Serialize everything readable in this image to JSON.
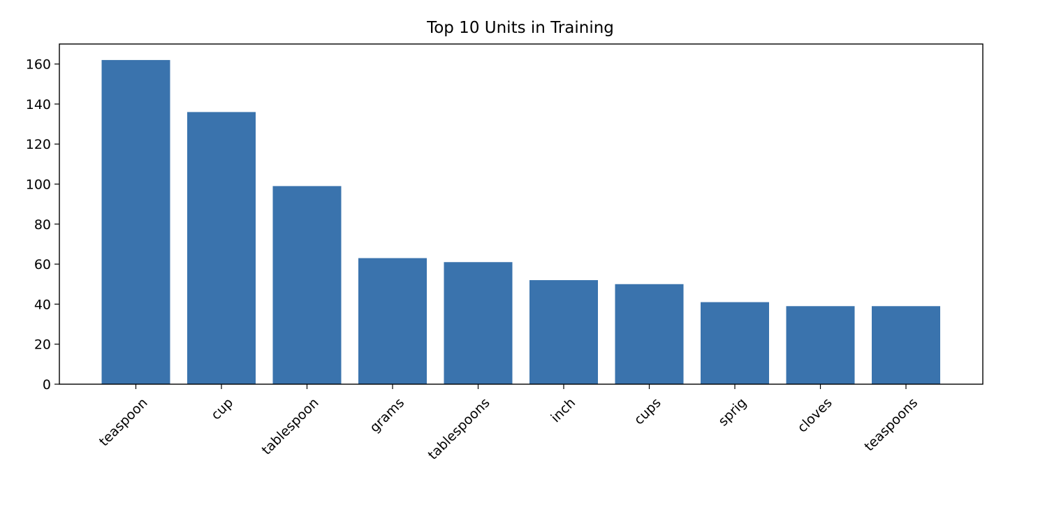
{
  "colors": {
    "bar": "#3a73ad",
    "axis": "#000000",
    "background": "#ffffff"
  },
  "chart_data": {
    "type": "bar",
    "title": "Top 10 Units in Training",
    "xlabel": "",
    "ylabel": "",
    "categories": [
      "teaspoon",
      "cup",
      "tablespoon",
      "grams",
      "tablespoons",
      "inch",
      "cups",
      "sprig",
      "cloves",
      "teaspoons"
    ],
    "values": [
      162,
      136,
      99,
      63,
      61,
      52,
      50,
      41,
      39,
      39
    ],
    "ylim": [
      0,
      170
    ],
    "yticks": [
      "0",
      "20",
      "40",
      "60",
      "80",
      "100",
      "120",
      "140",
      "160"
    ],
    "grid": false,
    "legend": "none"
  }
}
